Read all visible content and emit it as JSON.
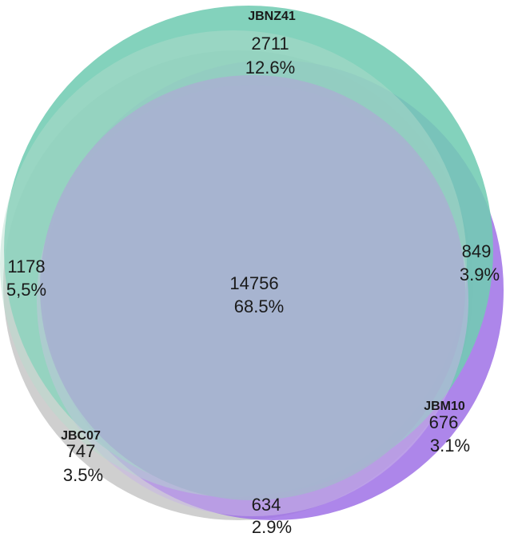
{
  "sets": [
    {
      "id": "jbnz41",
      "name": "JBNZ41",
      "color": "#72ccb3"
    },
    {
      "id": "jbc07",
      "name": "JBC07",
      "color": "#cccccc"
    },
    {
      "id": "jbm10",
      "name": "JBM10",
      "color": "#9f71e6"
    }
  ],
  "regions": {
    "jbnz41_only": {
      "count": "2711",
      "percent": "12.6%"
    },
    "jbnz41_jbc07": {
      "count": "1178",
      "percent": "5,5%"
    },
    "jbnz41_jbm10": {
      "count": "849",
      "percent": "3.9%"
    },
    "all_three": {
      "count": "14756",
      "percent": "68.5%"
    },
    "jbc07_only": {
      "count": "747",
      "percent": "3.5%"
    },
    "jbm10_only": {
      "count": "676",
      "percent": "3.1%"
    },
    "jbc07_jbm10": {
      "count": "634",
      "percent": "2.9%"
    }
  }
}
